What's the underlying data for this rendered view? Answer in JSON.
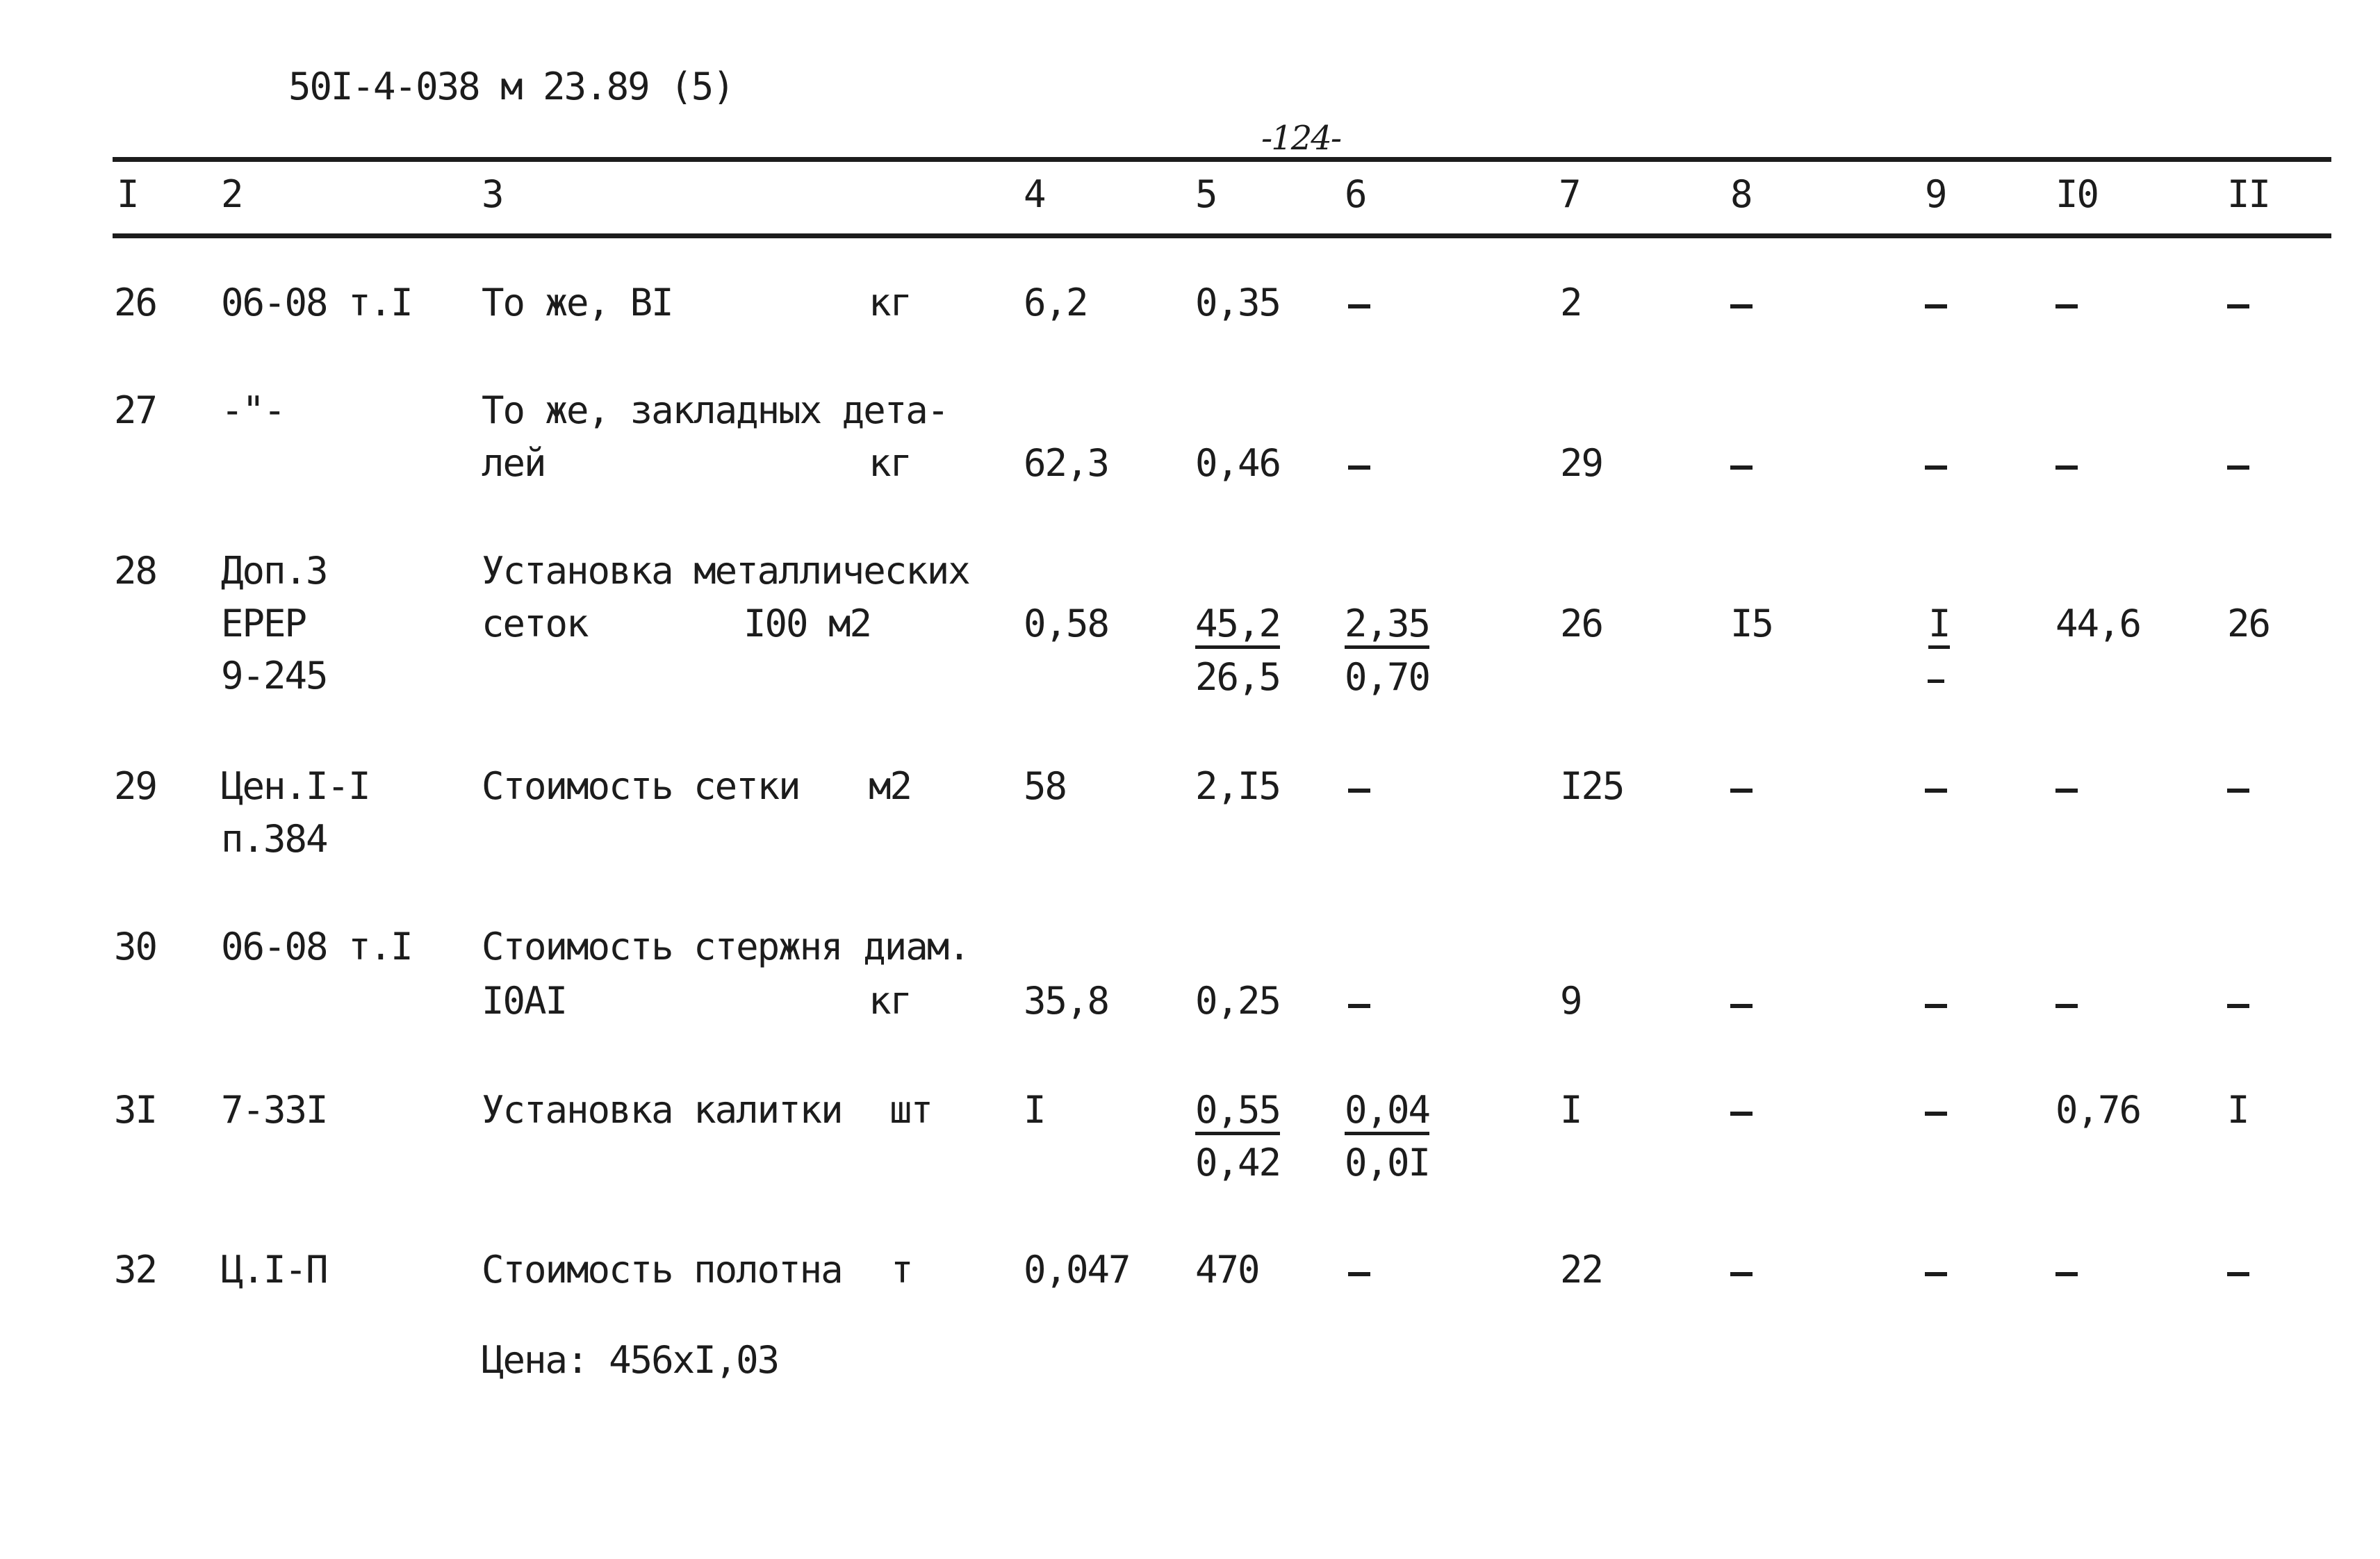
{
  "document": {
    "code": "50I-4-038 м 23.89 (5)",
    "page_number": "-124-"
  },
  "table": {
    "columns": [
      "I",
      "2",
      "3",
      "4",
      "5",
      "6",
      "7",
      "8",
      "9",
      "I0",
      "II"
    ],
    "rows": [
      {
        "num": "26",
        "code": "06-08 т.I",
        "name_lines": [
          "То же, ВI"
        ],
        "unit": "кг",
        "qty": "6,2",
        "c5": "0,35",
        "c7": "2"
      },
      {
        "num": "27",
        "code": "-\"-",
        "name_lines": [
          "То же, закладных дета-",
          "лей"
        ],
        "unit": "кг",
        "qty": "62,3",
        "c5": "0,46",
        "c7": "29"
      },
      {
        "num": "28",
        "code_lines": [
          "Доп.3",
          "ЕРЕР",
          "9-245"
        ],
        "name_lines": [
          "Установка металлических",
          "сеток"
        ],
        "unit": "I00 м2",
        "qty": "0,58",
        "c5_top": "45,2",
        "c5_bottom": "26,5",
        "c6_top": "2,35",
        "c6_bottom": "0,70",
        "c7": "26",
        "c8": "I5",
        "c9_top": "I",
        "c10": "44,6",
        "c11": "26"
      },
      {
        "num": "29",
        "code_lines": [
          "Цен.I-I",
          "п.384"
        ],
        "name_lines": [
          "Стоимость сетки"
        ],
        "unit": "м2",
        "qty": "58",
        "c5": "2,I5",
        "c7": "I25"
      },
      {
        "num": "30",
        "code": "06-08 т.I",
        "name_lines": [
          "Стоимость стержня диам.",
          "I0АI"
        ],
        "unit": "кг",
        "qty": "35,8",
        "c5": "0,25",
        "c7": "9"
      },
      {
        "num": "3I",
        "code": "7-33I",
        "name_lines": [
          "Установка калитки"
        ],
        "unit": "шт",
        "qty": "I",
        "c5_top": "0,55",
        "c5_bottom": "0,42",
        "c6_top": "0,04",
        "c6_bottom": "0,0I",
        "c7": "I",
        "c10": "0,76",
        "c11": "I"
      },
      {
        "num": "32",
        "code": "Ц.I-П",
        "name_lines": [
          "Стоимость полотна"
        ],
        "unit": "т",
        "qty": "0,047",
        "c5": "470",
        "c7": "22"
      }
    ],
    "footnote": "Цена: 456хI,03"
  }
}
